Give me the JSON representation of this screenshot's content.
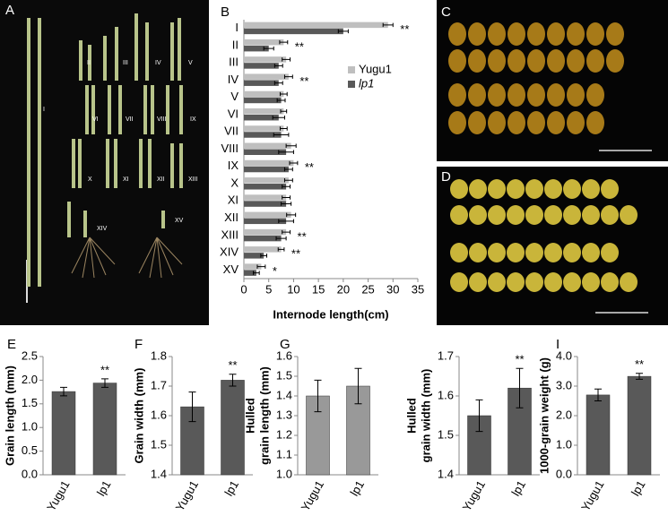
{
  "chart_data": [
    {
      "type": "hbar",
      "panel": "B",
      "xlabel": "Internode length(cm)",
      "categories": [
        "I",
        "II",
        "III",
        "IV",
        "V",
        "VI",
        "VII",
        "VIII",
        "IX",
        "X",
        "XI",
        "XII",
        "XIII",
        "XIV",
        "XV"
      ],
      "series": [
        {
          "name": "Yugu1",
          "color": "#bfbfbf",
          "values": [
            29,
            8,
            8.5,
            9,
            8,
            8,
            8,
            9.5,
            10,
            9,
            8.5,
            9.5,
            8.5,
            7.5,
            3.5
          ],
          "errors": [
            1,
            0.8,
            0.8,
            0.8,
            0.7,
            0.6,
            0.7,
            1,
            0.8,
            0.8,
            0.8,
            0.9,
            0.8,
            0.6,
            0.8
          ]
        },
        {
          "name": "lp1",
          "color": "#595959",
          "values": [
            20,
            5,
            7,
            7,
            7.5,
            7,
            7.5,
            8.5,
            9,
            8.5,
            8.5,
            8.5,
            7.5,
            4,
            2.5
          ],
          "errors": [
            1,
            1,
            0.8,
            0.8,
            0.8,
            1.2,
            1.5,
            1.5,
            0.8,
            0.8,
            1,
            1.5,
            1,
            0.6,
            0.6
          ]
        }
      ],
      "annotations": [
        "**",
        "**",
        null,
        "**",
        null,
        null,
        null,
        null,
        "**",
        null,
        null,
        null,
        "**",
        "**",
        "*"
      ],
      "xlim": [
        0,
        35
      ],
      "xticks": [
        0,
        5,
        10,
        15,
        20,
        25,
        30,
        35
      ]
    },
    {
      "type": "bar",
      "panel": "E",
      "ylabel": [
        "Grain length (mm)"
      ],
      "categories": [
        "Yugu1",
        "lp1"
      ],
      "values": [
        1.76,
        1.94
      ],
      "errors": [
        0.09,
        0.09
      ],
      "annotations": [
        null,
        "**"
      ],
      "color": "#595959",
      "ylim": [
        0,
        2.5
      ],
      "yticks": [
        {
          "value": 0,
          "label": "0.0"
        },
        {
          "value": 0.5,
          "label": "0.5"
        },
        {
          "value": 1,
          "label": "1.0"
        },
        {
          "value": 1.5,
          "label": "1.5"
        },
        {
          "value": 2,
          "label": "2.0"
        },
        {
          "value": 2.5,
          "label": "2.5"
        }
      ]
    },
    {
      "type": "bar",
      "panel": "F",
      "ylabel": [
        "Grain width (mm)"
      ],
      "categories": [
        "Yugu1",
        "lp1"
      ],
      "values": [
        1.63,
        1.72
      ],
      "errors": [
        0.05,
        0.02
      ],
      "annotations": [
        null,
        "**"
      ],
      "color": "#595959",
      "ylim": [
        1.4,
        1.8
      ],
      "yticks": [
        1.4,
        1.5,
        1.6,
        1.7,
        1.8
      ]
    },
    {
      "type": "bar",
      "panel": "G",
      "ylabel": [
        "Hulled",
        "grain length (mm)"
      ],
      "categories": [
        "Yugu1",
        "lp1"
      ],
      "values": [
        1.4,
        1.45
      ],
      "errors": [
        0.08,
        0.09
      ],
      "annotations": [
        null,
        null
      ],
      "color": "#999999",
      "ylim": [
        1.0,
        1.6
      ],
      "yticks": [
        {
          "value": 1,
          "label": "1.0"
        },
        1.1,
        1.2,
        1.3,
        1.4,
        1.5,
        1.6
      ]
    },
    {
      "type": "bar",
      "ylabel": [
        "Hulled",
        "grain width (mm)"
      ],
      "categories": [
        "Yugu1",
        "lp1"
      ],
      "values": [
        1.55,
        1.62
      ],
      "errors": [
        0.04,
        0.05
      ],
      "annotations": [
        null,
        "**"
      ],
      "color": "#595959",
      "ylim": [
        1.4,
        1.7
      ],
      "yticks": [
        1.4,
        1.5,
        1.6,
        1.7
      ]
    },
    {
      "type": "bar",
      "panel": "I",
      "ylabel": [
        "1000-grain weight (g)"
      ],
      "categories": [
        "Yugu1",
        "lp1"
      ],
      "values": [
        2.7,
        3.33
      ],
      "errors": [
        0.2,
        0.1
      ],
      "annotations": [
        null,
        "**"
      ],
      "color": "#595959",
      "ylim": [
        0,
        4
      ],
      "yticks": [
        {
          "value": 0,
          "label": "0.0"
        },
        {
          "value": 1,
          "label": "1.0"
        },
        {
          "value": 2,
          "label": "2.0"
        },
        {
          "value": 3,
          "label": "3.0"
        },
        {
          "value": 4,
          "label": "4.0"
        }
      ]
    }
  ],
  "photos": [
    {
      "panel": "A",
      "labels": [
        "I",
        "II",
        "III",
        "IV",
        "V",
        "VI",
        "VII",
        "VIII",
        "IX",
        "X",
        "XI",
        "XII",
        "XIII",
        "XIV",
        "XV"
      ]
    },
    {
      "panel": "C"
    },
    {
      "panel": "D"
    }
  ]
}
